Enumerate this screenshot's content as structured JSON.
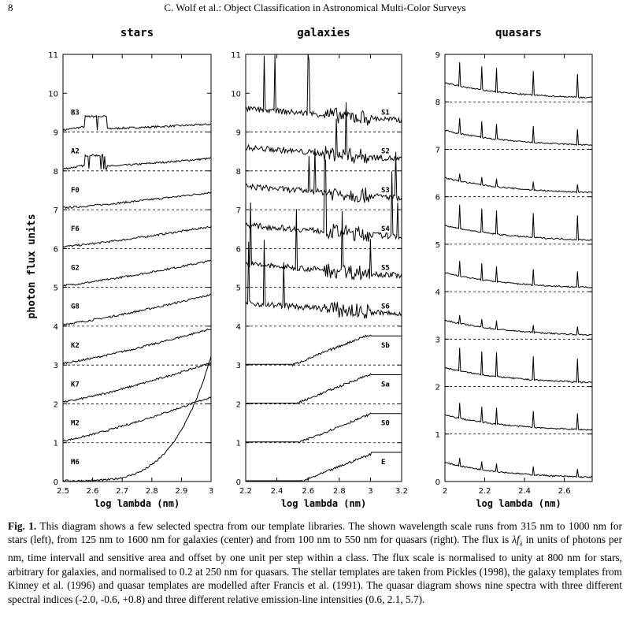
{
  "header": {
    "page_number": "8",
    "running_title": "C. Wolf et al.: Object Classification in Astronomical Multi-Color Surveys"
  },
  "figure": {
    "ylabel": "photon flux units",
    "panels": [
      {
        "title": "stars",
        "xlabel": "log lambda (nm)",
        "xticks": [
          "2.5",
          "2.6",
          "2.7",
          "2.8",
          "2.9",
          "3"
        ],
        "yticks": [
          "0",
          "1",
          "2",
          "3",
          "4",
          "5",
          "6",
          "7",
          "8",
          "9",
          "10",
          "11"
        ],
        "labels": [
          "B3",
          "A2",
          "F0",
          "F6",
          "G2",
          "G8",
          "K2",
          "K7",
          "M2",
          "M6"
        ]
      },
      {
        "title": "galaxies",
        "xlabel": "log lambda (nm)",
        "xticks": [
          "2.2",
          "2.4",
          "2.6",
          "2.8",
          "3",
          "3.2"
        ],
        "yticks": [
          "0",
          "1",
          "2",
          "3",
          "4",
          "5",
          "6",
          "7",
          "8",
          "9",
          "10",
          "11"
        ],
        "labels": [
          "S1",
          "S2",
          "S3",
          "S4",
          "S5",
          "S6",
          "Sb",
          "Sa",
          "S0",
          "E"
        ]
      },
      {
        "title": "quasars",
        "xlabel": "log lambda (nm)",
        "xticks": [
          "2",
          "2.2",
          "2.4",
          "2.6"
        ],
        "yticks": [
          "0",
          "1",
          "2",
          "3",
          "4",
          "5",
          "6",
          "7",
          "8",
          "9"
        ],
        "labels": []
      }
    ]
  },
  "caption": {
    "label": "Fig. 1.",
    "line1": "This diagram shows a few selected spectra from our template libraries. The shown wavelength scale runs from 315 nm to 1000 nm for stars (left), from 125 nm to 1600 nm for galaxies (center) and from 100 nm to 550 nm for quasars (right). The flux is",
    "symbol": "λf",
    "symbol_sub": "λ",
    "rest": "in units of photons per nm, time intervall and sensitive area and offset by one unit per step within a class. The flux scale is normalised to unity at 800 nm for stars, arbitrary for galaxies, and normalised to 0.2 at 250 nm for quasars. The stellar templates are taken from Pickles (1998), the galaxy templates from Kinney et al. (1996) and quasar templates are modelled after Francis et al. (1991). The quasar diagram shows nine spectra with three different spectral indices (-2.0, -0.6, +0.8) and three different relative emission-line intensities (0.6, 2.1, 5.7)."
  }
}
